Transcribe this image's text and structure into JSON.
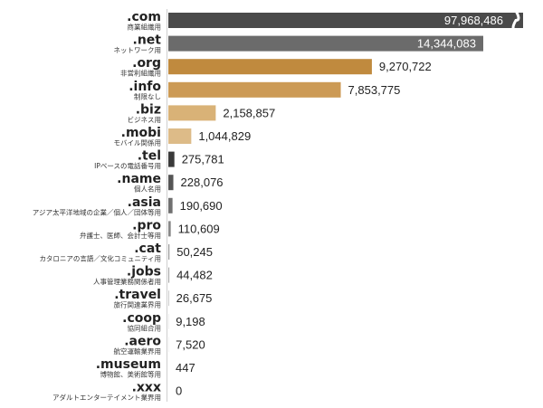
{
  "chart_data": {
    "type": "bar",
    "orientation": "horizontal",
    "title": "",
    "xlabel": "",
    "ylabel": "",
    "categories": [
      ".com",
      ".net",
      ".org",
      ".info",
      ".biz",
      ".mobi",
      ".tel",
      ".name",
      ".asia",
      ".pro",
      ".cat",
      ".jobs",
      ".travel",
      ".coop",
      ".aero",
      ".museum",
      ".xxx"
    ],
    "descriptions": [
      "商業組織用",
      "ネットワーク用",
      "非営利組織用",
      "制限なし",
      "ビジネス用",
      "モバイル関係用",
      "IPベースの電話番号用",
      "個人名用",
      "アジア太平洋地域の企業／個人／団体等用",
      "弁護士、医師、会計士等用",
      "カタロニアの言語／文化コミュニティ用",
      "人事管理業務関係者用",
      "旅行関連業界用",
      "協同組合用",
      "航空運輸業界用",
      "博物館、美術館等用",
      "アダルトエンターテイメント業界用"
    ],
    "values": [
      97968486,
      14344083,
      9270722,
      7853775,
      2158857,
      1044829,
      275781,
      228076,
      190690,
      110609,
      50245,
      44482,
      26675,
      9198,
      7520,
      447,
      0
    ],
    "value_labels": [
      "97,968,486",
      "14,344,083",
      "9,270,722",
      "7,853,775",
      "2,158,857",
      "1,044,829",
      "275,781",
      "228,076",
      "190,690",
      "110,609",
      "50,245",
      "44,482",
      "26,675",
      "9,198",
      "7,520",
      "447",
      "0"
    ],
    "colors": [
      "#4a4a4a",
      "#6b6b6b",
      "#c08a3e",
      "#cc9a55",
      "#d9b277",
      "#ddbb88",
      "#3a3a3a",
      "#555555",
      "#707070",
      "#888888",
      "#999999",
      "#a6a6a6",
      "#b0b0b0",
      "#b8b8b8",
      "#bebebe",
      "#c4c4c4",
      "#cccccc"
    ],
    "axis_break": {
      "series_index": 0
    },
    "grid": false,
    "legend": "none"
  }
}
